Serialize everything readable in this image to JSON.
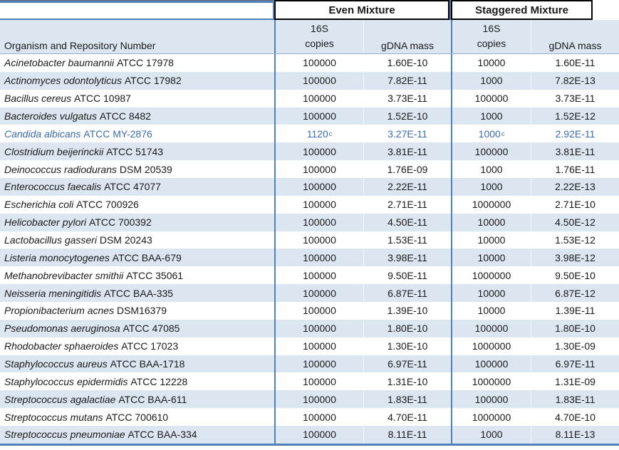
{
  "table": {
    "headers": {
      "organism": "Organism and Repository Number",
      "even_group": "Even Mixture",
      "staggered_group": "Staggered Mixture",
      "copies_line1": "16S",
      "copies_line2": "copies",
      "gdna": "gDNA mass"
    },
    "colors": {
      "stripe": "#DCE6F1",
      "border_blue": "#4F81BD",
      "border_blue_light": "#95B3D7",
      "box_black": "#000000",
      "highlight_text": "#3C6CAF",
      "text": "#1A1A1A",
      "top_gray": "#6D6D6D"
    },
    "rows": [
      {
        "species": "Acinetobacter baumannii",
        "accession": "ATCC 17978",
        "even_copies": "100000",
        "even_gdna": "1.60E-10",
        "stag_copies": "10000",
        "stag_gdna": "1.60E-11"
      },
      {
        "species": "Actinomyces odontolyticus",
        "accession": "ATCC 17982",
        "even_copies": "100000",
        "even_gdna": "7.82E-11",
        "stag_copies": "1000",
        "stag_gdna": "7.82E-13"
      },
      {
        "species": "Bacillus cereus",
        "accession": "ATCC 10987",
        "even_copies": "100000",
        "even_gdna": "3.73E-11",
        "stag_copies": "100000",
        "stag_gdna": "3.73E-11"
      },
      {
        "species": "Bacteroides vulgatus",
        "accession": "ATCC 8482",
        "even_copies": "100000",
        "even_gdna": "1.52E-10",
        "stag_copies": "1000",
        "stag_gdna": "1.52E-12"
      },
      {
        "species": "Candida albicans",
        "accession": "ATCC MY-2876",
        "highlight": true,
        "even_copies": "1120",
        "even_copies_sup": "c",
        "even_gdna": "3.27E-11",
        "stag_copies": "1000",
        "stag_copies_sup": "c",
        "stag_gdna": "2.92E-11"
      },
      {
        "species": "Clostridium beijerinckii",
        "accession": "ATCC 51743",
        "even_copies": "100000",
        "even_gdna": "3.81E-11",
        "stag_copies": "100000",
        "stag_gdna": "3.81E-11"
      },
      {
        "species": "Deinococcus radiodurans",
        "accession": "DSM 20539",
        "even_copies": "100000",
        "even_gdna": "1.76E-09",
        "stag_copies": "1000",
        "stag_gdna": "1.76E-11"
      },
      {
        "species": "Enterococcus faecalis",
        "accession": "ATCC 47077",
        "even_copies": "100000",
        "even_gdna": "2.22E-11",
        "stag_copies": "1000",
        "stag_gdna": "2.22E-13"
      },
      {
        "species": "Escherichia coli",
        "accession": "ATCC 700926",
        "even_copies": "100000",
        "even_gdna": "2.71E-11",
        "stag_copies": "1000000",
        "stag_gdna": "2.71E-10"
      },
      {
        "species": "Helicobacter pylori",
        "accession": "ATCC 700392",
        "even_copies": "100000",
        "even_gdna": "4.50E-11",
        "stag_copies": "10000",
        "stag_gdna": "4.50E-12"
      },
      {
        "species": "Lactobacillus gasseri",
        "accession": "DSM 20243",
        "even_copies": "100000",
        "even_gdna": "1.53E-11",
        "stag_copies": "10000",
        "stag_gdna": "1.53E-12"
      },
      {
        "species": "Listeria monocytogenes",
        "accession": "ATCC BAA-679",
        "even_copies": "100000",
        "even_gdna": "3.98E-11",
        "stag_copies": "10000",
        "stag_gdna": "3.98E-12"
      },
      {
        "species": "Methanobrevibacter smithii",
        "accession": "ATCC 35061",
        "even_copies": "100000",
        "even_gdna": "9.50E-11",
        "stag_copies": "1000000",
        "stag_gdna": "9.50E-10"
      },
      {
        "species": "Neisseria meningitidis",
        "accession": "ATCC BAA-335",
        "even_copies": "100000",
        "even_gdna": "6.87E-11",
        "stag_copies": "10000",
        "stag_gdna": "6.87E-12"
      },
      {
        "species": "Propionibacterium acnes",
        "accession": "DSM16379",
        "even_copies": "100000",
        "even_gdna": "1.39E-10",
        "stag_copies": "10000",
        "stag_gdna": "1.39E-11"
      },
      {
        "species": "Pseudomonas aeruginosa",
        "accession": "ATCC 47085",
        "even_copies": "100000",
        "even_gdna": "1.80E-10",
        "stag_copies": "100000",
        "stag_gdna": "1.80E-10"
      },
      {
        "species": "Rhodobacter sphaeroides",
        "accession": "ATCC 17023",
        "even_copies": "100000",
        "even_gdna": "1.30E-10",
        "stag_copies": "1000000",
        "stag_gdna": "1.30E-09"
      },
      {
        "species": "Staphylococcus aureus",
        "accession": "ATCC BAA-1718",
        "even_copies": "100000",
        "even_gdna": "6.97E-11",
        "stag_copies": "100000",
        "stag_gdna": "6.97E-11"
      },
      {
        "species": "Staphylococcus epidermidis",
        "accession": "ATCC 12228",
        "even_copies": "100000",
        "even_gdna": "1.31E-10",
        "stag_copies": "1000000",
        "stag_gdna": "1.31E-09"
      },
      {
        "species": "Streptococcus agalactiae",
        "accession": "ATCC BAA-611",
        "even_copies": "100000",
        "even_gdna": "1.83E-11",
        "stag_copies": "100000",
        "stag_gdna": "1.83E-11"
      },
      {
        "species": "Streptococcus mutans",
        "accession": "ATCC 700610",
        "even_copies": "100000",
        "even_gdna": "4.70E-11",
        "stag_copies": "1000000",
        "stag_gdna": "4.70E-10"
      },
      {
        "species": "Streptococcus pneumoniae",
        "accession": "ATCC BAA-334",
        "even_copies": "100000",
        "even_gdna": "8.11E-11",
        "stag_copies": "1000",
        "stag_gdna": "8.11E-13"
      }
    ]
  }
}
